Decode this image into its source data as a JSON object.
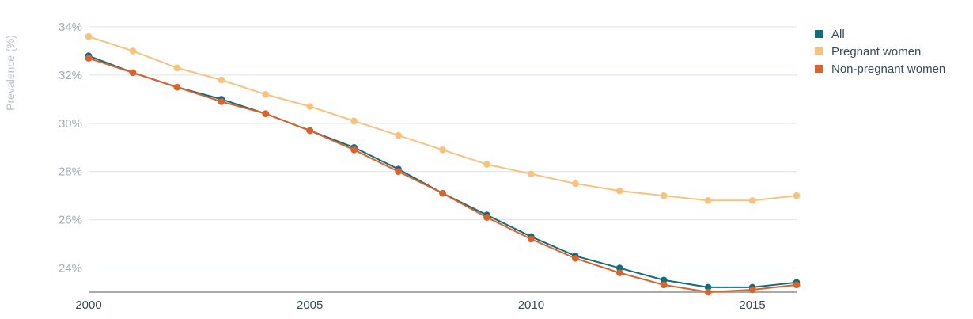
{
  "chart_data": {
    "type": "line",
    "title": "",
    "xlabel": "",
    "ylabel": "Prevalence (%)",
    "x": [
      2000,
      2001,
      2002,
      2003,
      2004,
      2005,
      2006,
      2007,
      2008,
      2009,
      2010,
      2011,
      2012,
      2013,
      2014,
      2015,
      2016
    ],
    "xticks": [
      "2000",
      "2005",
      "2010",
      "2015"
    ],
    "yticks": [
      "24%",
      "26%",
      "28%",
      "30%",
      "32%",
      "34%"
    ],
    "ylim": [
      23,
      34
    ],
    "xlim": [
      2000,
      2016
    ],
    "grid": true,
    "legend_position": "top-right",
    "series": [
      {
        "name": "All",
        "color": "#0e6e7e",
        "values": [
          32.8,
          32.1,
          31.5,
          31.0,
          30.4,
          29.7,
          29.0,
          28.1,
          27.1,
          26.2,
          25.3,
          24.5,
          24.0,
          23.5,
          23.2,
          23.2,
          23.4
        ]
      },
      {
        "name": "Pregnant women",
        "color": "#f9c27c",
        "values": [
          33.6,
          33.0,
          32.3,
          31.8,
          31.2,
          30.7,
          30.1,
          29.5,
          28.9,
          28.3,
          27.9,
          27.5,
          27.2,
          27.0,
          26.8,
          26.8,
          27.0
        ]
      },
      {
        "name": "Non-pregnant women",
        "color": "#e0602a",
        "values": [
          32.7,
          32.1,
          31.5,
          30.9,
          30.4,
          29.7,
          28.9,
          28.0,
          27.1,
          26.1,
          25.2,
          24.4,
          23.8,
          23.3,
          23.0,
          23.1,
          23.3
        ]
      }
    ]
  }
}
